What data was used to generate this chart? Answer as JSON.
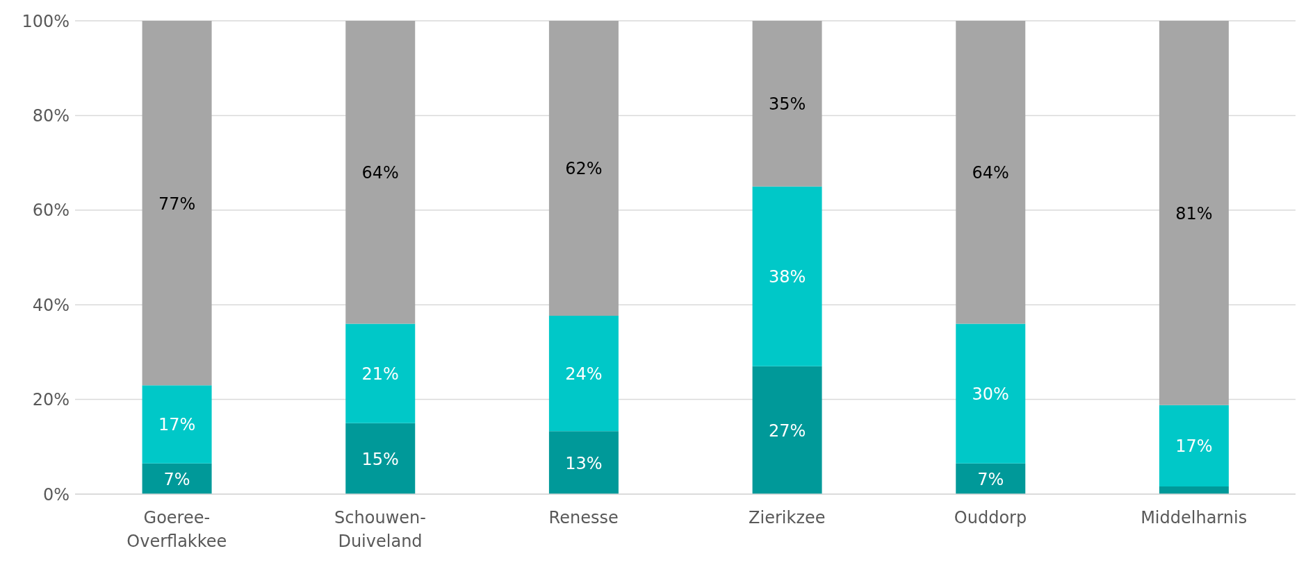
{
  "chart_data": {
    "type": "bar",
    "stacked": true,
    "categories": [
      "Goeree-Overflakkee",
      "Schouwen-Duiveland",
      "Renesse",
      "Zierikzee",
      "Ouddorp",
      "Middelharnis"
    ],
    "series": [
      {
        "color": "#009999",
        "values": [
          6.5,
          15,
          13.3,
          27,
          6.5,
          1.6
        ],
        "value_labels": [
          "7%",
          "15%",
          "13%",
          "27%",
          "7%",
          null
        ]
      },
      {
        "color": "#00c8c8",
        "values": [
          16.5,
          21,
          24.4,
          38,
          29.5,
          17.2
        ],
        "value_labels": [
          "17%",
          "21%",
          "24%",
          "38%",
          "30%",
          "17%"
        ]
      },
      {
        "color": "#a6a6a6",
        "values": [
          77,
          64,
          62.3,
          35,
          64,
          81.2
        ],
        "value_labels": [
          "77%",
          "64%",
          "62%",
          "35%",
          "64%",
          "81%"
        ]
      }
    ],
    "ylim": [
      0,
      100
    ],
    "yticks": [
      {
        "value": 0,
        "label": "0%"
      },
      {
        "value": 20,
        "label": "20%"
      },
      {
        "value": 40,
        "label": "40%"
      },
      {
        "value": 60,
        "label": "60%"
      },
      {
        "value": 80,
        "label": "80%"
      },
      {
        "value": 100,
        "label": "100%"
      }
    ],
    "grid": "y",
    "legend": false
  }
}
